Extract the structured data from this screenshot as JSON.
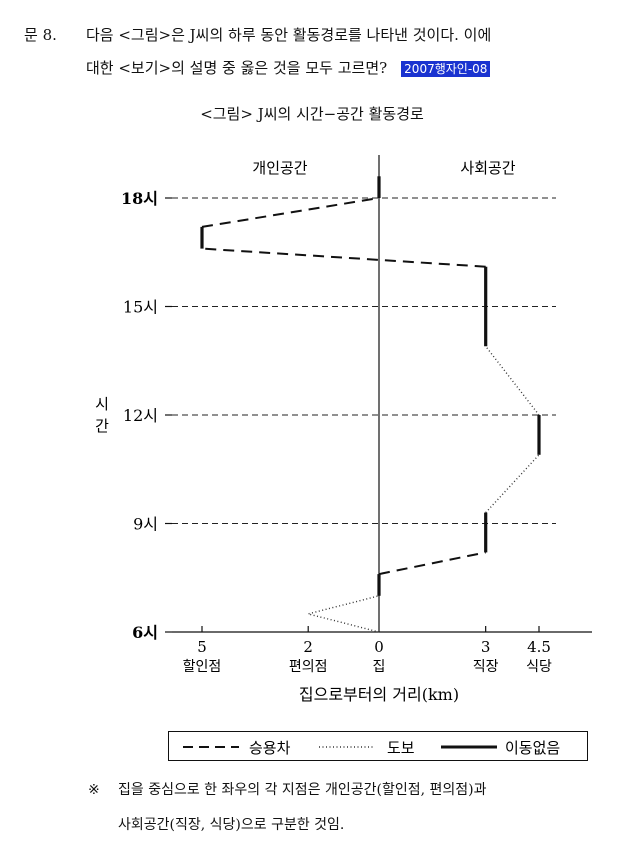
{
  "question": {
    "number": "문  8.",
    "line1": "다음 <그림>은 J씨의 하루 동안 활동경로를 나타낸 것이다. 이에",
    "line2": "대한 <보기>의 설명 중 옳은 것을 모두 고르면?",
    "source_tag": "2007행자인-08"
  },
  "figure_title": "<그림> J씨의 시간−공간 활동경로",
  "chart_data": {
    "type": "line",
    "xlabel": "집으로부터의 거리(km)",
    "ylabel": "시간",
    "region_labels": [
      "개인공간",
      "사회공간"
    ],
    "x_ticks": [
      {
        "value": -5,
        "label": "5",
        "place": "할인점"
      },
      {
        "value": -2,
        "label": "2",
        "place": "편의점"
      },
      {
        "value": 0,
        "label": "0",
        "place": "집"
      },
      {
        "value": 3,
        "label": "3",
        "place": "직장"
      },
      {
        "value": 4.5,
        "label": "4.5",
        "place": "식당"
      }
    ],
    "y_ticks": [
      {
        "value": 6,
        "label": "6시"
      },
      {
        "value": 9,
        "label": "9시"
      },
      {
        "value": 12,
        "label": "12시"
      },
      {
        "value": 15,
        "label": "15시"
      },
      {
        "value": 18,
        "label": "18시"
      }
    ],
    "xlim": [
      -5,
      4.5
    ],
    "ylim": [
      6,
      18
    ],
    "gridlines": [
      9,
      12,
      15,
      18
    ],
    "series": [
      {
        "name": "도보",
        "style": "dotted",
        "segments": [
          [
            [
              0,
              6
            ],
            [
              -2,
              6.5
            ],
            [
              0,
              7.0
            ]
          ],
          [
            [
              3,
              9.3
            ],
            [
              4.5,
              10.9
            ]
          ],
          [
            [
              4.5,
              12.0
            ],
            [
              3,
              13.9
            ]
          ]
        ]
      },
      {
        "name": "승용차",
        "style": "dashed",
        "segments": [
          [
            [
              0,
              7.6
            ],
            [
              3,
              8.2
            ]
          ],
          [
            [
              3,
              16.1
            ],
            [
              -5,
              16.6
            ]
          ],
          [
            [
              -5,
              17.2
            ],
            [
              0,
              18.0
            ]
          ]
        ]
      },
      {
        "name": "이동없음",
        "style": "solid",
        "segments": [
          [
            [
              0,
              7.0
            ],
            [
              0,
              7.6
            ]
          ],
          [
            [
              3,
              8.2
            ],
            [
              3,
              9.3
            ]
          ],
          [
            [
              4.5,
              10.9
            ],
            [
              4.5,
              12.0
            ]
          ],
          [
            [
              3,
              13.9
            ],
            [
              3,
              16.1
            ]
          ],
          [
            [
              -5,
              16.6
            ],
            [
              -5,
              17.2
            ]
          ],
          [
            [
              0,
              18.0
            ],
            [
              0,
              18.6
            ]
          ]
        ]
      }
    ],
    "legend": [
      "승용차",
      "도보",
      "이동없음"
    ]
  },
  "note": {
    "mark": "※",
    "line1": "집을 중심으로 한 좌우의 각 지점은 개인공간(할인점, 편의점)과",
    "line2": "사회공간(직장, 식당)으로 구분한 것임."
  }
}
